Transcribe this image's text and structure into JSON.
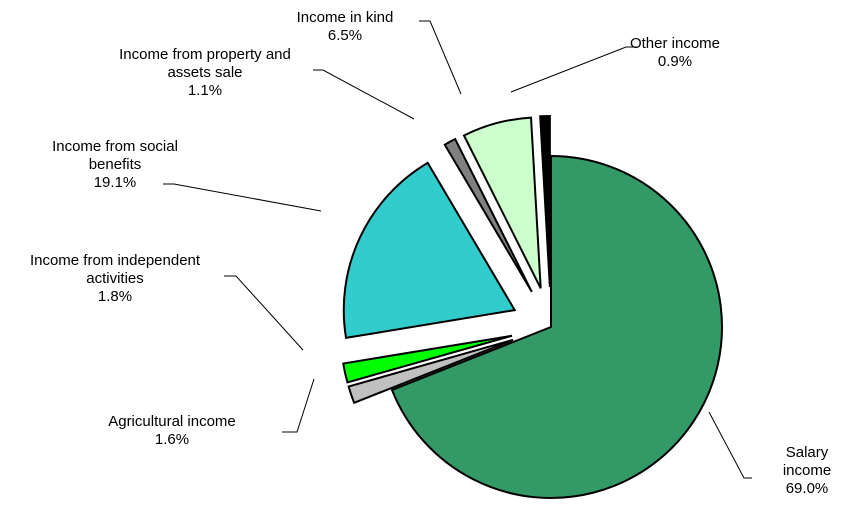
{
  "chart_data": {
    "type": "pie",
    "title": "",
    "unit": "%",
    "start_angle_deg": 0,
    "direction": "clockwise",
    "slices": [
      {
        "name_lines": [
          "Salary",
          "income"
        ],
        "value": 69.0,
        "value_label": "69.0%",
        "color": "#339966",
        "exploded": false
      },
      {
        "name_lines": [
          "Agricultural income"
        ],
        "value": 1.6,
        "value_label": "1.6%",
        "color": "#C0C0C0",
        "exploded": true
      },
      {
        "name_lines": [
          "Income from independent",
          "activities"
        ],
        "value": 1.8,
        "value_label": "1.8%",
        "color": "#00FF00",
        "exploded": true
      },
      {
        "name_lines": [
          "Income from social",
          "benefits"
        ],
        "value": 19.1,
        "value_label": "19.1%",
        "color": "#33CCCC",
        "exploded": true
      },
      {
        "name_lines": [
          "Income from property and",
          "assets sale"
        ],
        "value": 1.1,
        "value_label": "1.1%",
        "color": "#808080",
        "exploded": true
      },
      {
        "name_lines": [
          "Income in kind"
        ],
        "value": 6.5,
        "value_label": "6.5%",
        "color": "#CCFFCC",
        "exploded": true
      },
      {
        "name_lines": [
          "Other income"
        ],
        "value": 0.9,
        "value_label": "0.9%",
        "color": "#000000",
        "exploded": true
      }
    ]
  }
}
